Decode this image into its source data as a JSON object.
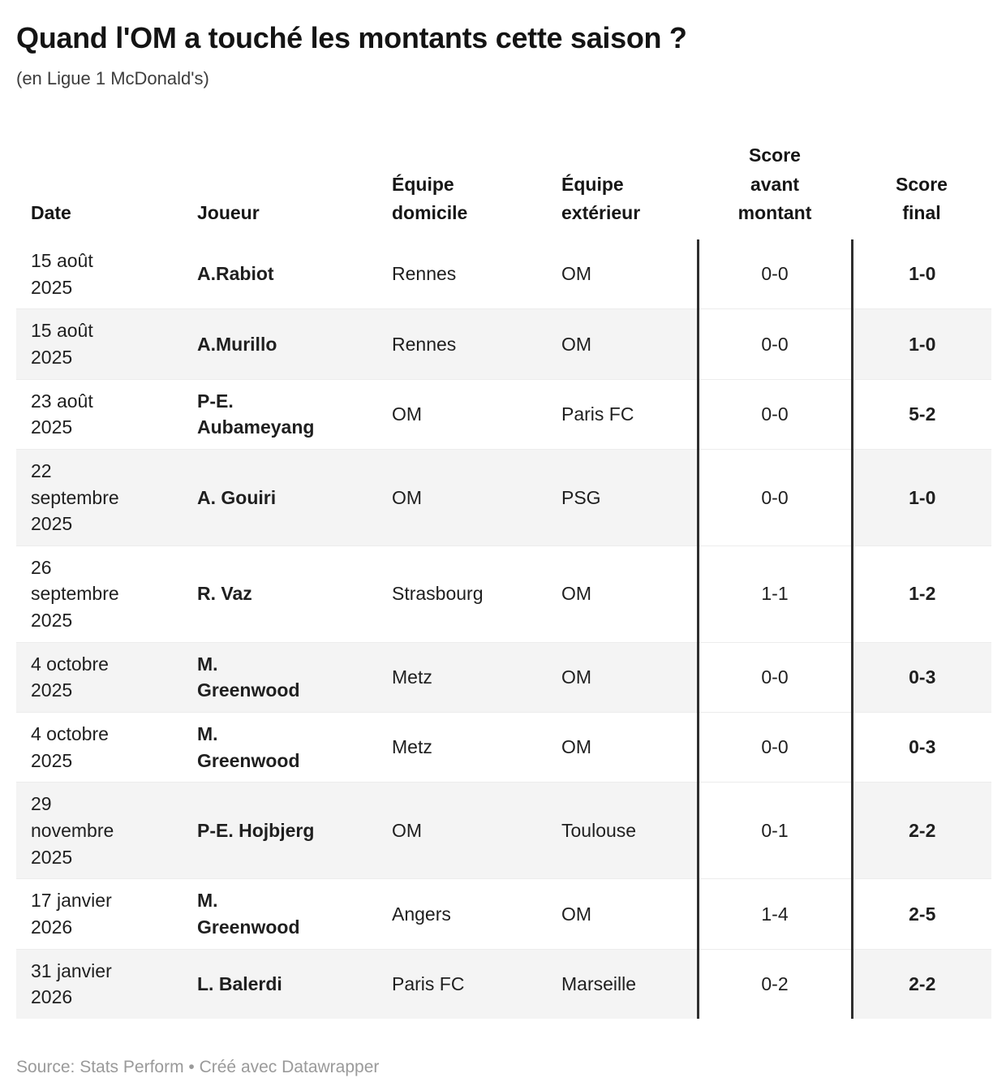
{
  "chart_data": {
    "type": "table",
    "title": "Quand l'OM a touché les montants cette saison ?",
    "subtitle": "(en Ligue 1 McDonald's)",
    "columns": [
      "Date",
      "Joueur",
      "Équipe\ndomicile",
      "Équipe\nextérieur",
      "Score\navant\nmontant",
      "Score\nfinal"
    ],
    "rows": [
      {
        "date": "15 août 2025",
        "player": "A.Rabiot",
        "home_team": "Rennes",
        "away_team": "OM",
        "score_before": "0-0",
        "score_final": "1-0"
      },
      {
        "date": "15 août 2025",
        "player": "A.Murillo",
        "home_team": "Rennes",
        "away_team": "OM",
        "score_before": "0-0",
        "score_final": "1-0"
      },
      {
        "date": "23 août 2025",
        "player": "P-E. Aubameyang",
        "home_team": "OM",
        "away_team": "Paris FC",
        "score_before": "0-0",
        "score_final": "5-2"
      },
      {
        "date": "22 septembre 2025",
        "player": "A. Gouiri",
        "home_team": "OM",
        "away_team": "PSG",
        "score_before": "0-0",
        "score_final": "1-0"
      },
      {
        "date": "26 septembre 2025",
        "player": "R. Vaz",
        "home_team": "Strasbourg",
        "away_team": "OM",
        "score_before": "1-1",
        "score_final": "1-2"
      },
      {
        "date": "4 octobre 2025",
        "player": "M. Greenwood",
        "home_team": "Metz",
        "away_team": "OM",
        "score_before": "0-0",
        "score_final": "0-3"
      },
      {
        "date": "4 octobre 2025",
        "player": "M. Greenwood",
        "home_team": "Metz",
        "away_team": "OM",
        "score_before": "0-0",
        "score_final": "0-3"
      },
      {
        "date": "29 novembre 2025",
        "player": "P-E. Hojbjerg",
        "home_team": "OM",
        "away_team": "Toulouse",
        "score_before": "0-1",
        "score_final": "2-2"
      },
      {
        "date": "17 janvier 2026",
        "player": "M. Greenwood",
        "home_team": "Angers",
        "away_team": "OM",
        "score_before": "1-4",
        "score_final": "2-5"
      },
      {
        "date": "31 janvier 2026",
        "player": "L. Balerdi",
        "home_team": "Paris FC",
        "away_team": "Marseille",
        "score_before": "0-2",
        "score_final": "2-2"
      }
    ],
    "source": "Source: Stats Perform • Créé avec Datawrapper",
    "layout_hints": {
      "striped_rows": true,
      "bordered_column": "Score avant montant",
      "grid": "off"
    }
  },
  "colors": {
    "text": "#1a1a1a",
    "row_stripe": "#f4f4f4",
    "column_border": "#2f2f2f",
    "row_separator": "#ececec",
    "source_text": "#9a9a9a",
    "background": "#ffffff"
  }
}
